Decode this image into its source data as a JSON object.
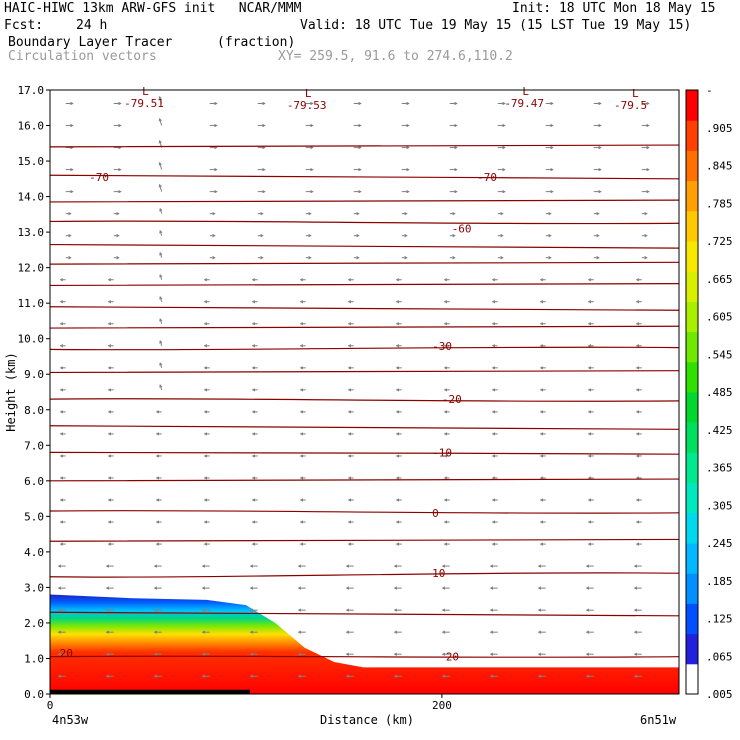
{
  "header": {
    "model_line": "HAIC-HIWC 13km ARW-GFS init   NCAR/MMM",
    "init_line": "Init: 18 UTC Mon 18 May 15",
    "fcst_label": "Fcst:",
    "fcst_value": "24 h",
    "valid_line": "Valid: 18 UTC Tue 19 May 15 (15 LST Tue 19 May 15)",
    "field_name": "Boundary Layer Tracer",
    "field_units": "(fraction)",
    "vector_name": "Circulation vectors",
    "xy_line": "XY= 259.5, 91.6 to 274.6,110.2"
  },
  "colors": {
    "contour": "#8b0000",
    "vector": "#808080",
    "colorbar": [
      "#ffffff",
      "#2222dd",
      "#0050ff",
      "#0090ff",
      "#00b8ff",
      "#00d8f0",
      "#00e8c0",
      "#00e890",
      "#00e060",
      "#00d830",
      "#30e000",
      "#70e800",
      "#a8f000",
      "#d8f000",
      "#f8e800",
      "#ffc800",
      "#ffa000",
      "#ff7000",
      "#ff4000",
      "#ff0000"
    ]
  },
  "chart_data": {
    "type": "cross-section",
    "xlabel": "Distance (km)",
    "ylabel": "Height (km)",
    "xlim": [
      0,
      321
    ],
    "ylim": [
      0,
      17
    ],
    "xticks": [
      0,
      200
    ],
    "yticks": [
      "0.0",
      "1.0",
      "2.0",
      "3.0",
      "4.0",
      "5.0",
      "6.0",
      "7.0",
      "8.0",
      "9.0",
      "10.0",
      "11.0",
      "12.0",
      "13.0",
      "14.0",
      "15.0",
      "16.0",
      "17.0"
    ],
    "endpoint_left": "4n53w",
    "endpoint_right": "6n51w",
    "colorbar_labels": [
      ".005",
      ".065",
      ".125",
      ".185",
      ".245",
      ".305",
      ".365",
      ".425",
      ".485",
      ".545",
      ".605",
      ".665",
      ".725",
      ".785",
      ".845",
      ".905",
      "-"
    ],
    "boundary_layer_top_km": [
      {
        "x": 0,
        "y": 2.8
      },
      {
        "x": 40,
        "y": 2.7
      },
      {
        "x": 80,
        "y": 2.65
      },
      {
        "x": 100,
        "y": 2.5
      },
      {
        "x": 115,
        "y": 2.0
      },
      {
        "x": 130,
        "y": 1.3
      },
      {
        "x": 145,
        "y": 0.9
      },
      {
        "x": 160,
        "y": 0.75
      },
      {
        "x": 321,
        "y": 0.75
      }
    ],
    "temperature_contours_C": [
      {
        "value": 20,
        "y_left": 1.05,
        "y_right": 1.05
      },
      {
        "value": 10,
        "y_left": 3.3,
        "y_right": 3.4
      },
      {
        "value": 0,
        "y_left": 5.15,
        "y_right": 5.1
      },
      {
        "value": -10,
        "y_left": 6.8,
        "y_right": 6.75
      },
      {
        "value": -20,
        "y_left": 8.3,
        "y_right": 8.25
      },
      {
        "value": -30,
        "y_left": 9.7,
        "y_right": 9.75
      },
      {
        "value": -60,
        "y_left": 13.3,
        "y_right": 13.25
      },
      {
        "value": -70,
        "y_left": 14.6,
        "y_right": 14.5
      }
    ],
    "contour_labels": [
      {
        "text": "20",
        "x": 5,
        "y": 1.15
      },
      {
        "text": "20",
        "x": 202,
        "y": 1.05
      },
      {
        "text": "10",
        "x": 195,
        "y": 3.4
      },
      {
        "text": "0",
        "x": 195,
        "y": 5.1
      },
      {
        "text": "-10",
        "x": 195,
        "y": 6.8
      },
      {
        "text": "-20",
        "x": 200,
        "y": 8.3
      },
      {
        "text": "-30",
        "x": 195,
        "y": 9.8
      },
      {
        "text": "-60",
        "x": 205,
        "y": 13.1
      },
      {
        "text": "-70",
        "x": 20,
        "y": 14.55
      },
      {
        "text": "-70",
        "x": 218,
        "y": 14.55
      }
    ],
    "minima": [
      {
        "mark": "L",
        "value": "-79.51",
        "x": 45,
        "y": 16.8
      },
      {
        "mark": "L",
        "value": "-79.53",
        "x": 128,
        "y": 16.75
      },
      {
        "mark": "L",
        "value": "-79.47",
        "x": 239,
        "y": 16.8
      },
      {
        "mark": "L",
        "value": "-79.5",
        "x": 295,
        "y": 16.75
      }
    ]
  }
}
